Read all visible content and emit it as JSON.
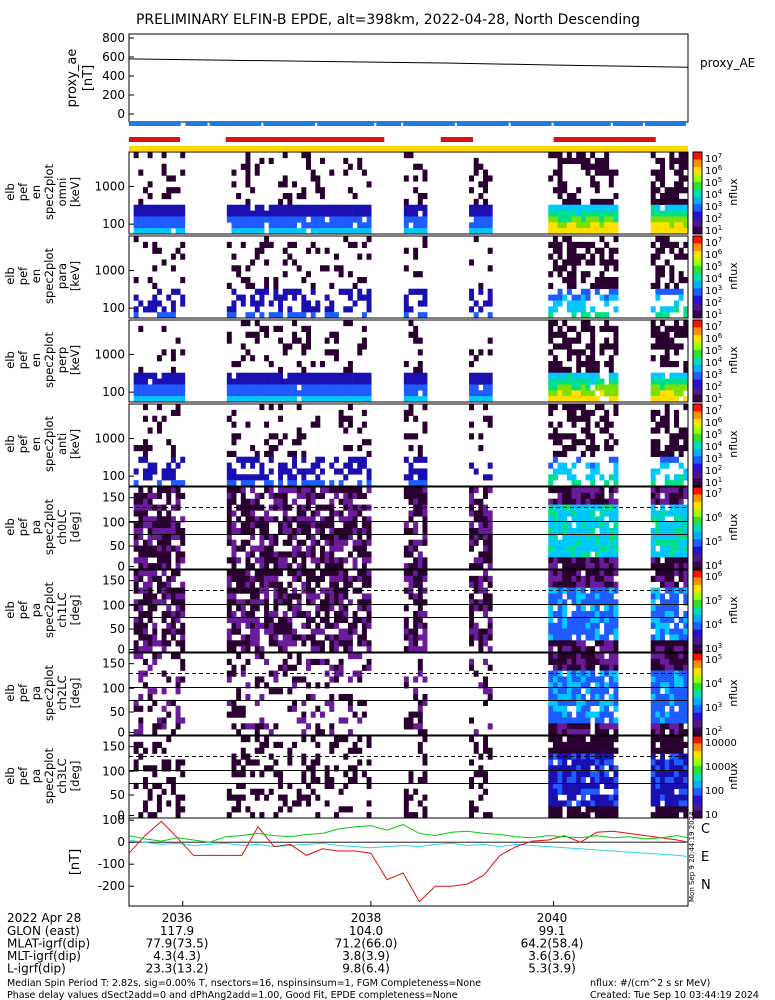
{
  "title": "PRELIMINARY ELFIN-B EPDE, alt=398km, 2022-04-28, North Descending",
  "colors": {
    "bar_blue": "#1e7ae6",
    "bar_red": "#e01010",
    "bar_yellow": "#ffd700",
    "line_C": "#2fd3e6",
    "line_E": "#e01010",
    "line_N": "#12c412"
  },
  "chart_data": [
    {
      "type": "line",
      "panel": "proxy_ae",
      "ylabel_lines": [
        "proxy_ae",
        "[nT]"
      ],
      "legend": "proxy_AE",
      "ylim": [
        0,
        800
      ],
      "yticks": [
        "800",
        "600",
        "400",
        "200",
        "0"
      ],
      "x_minutes": [
        0,
        2,
        4,
        6,
        8,
        10.4
      ],
      "values": [
        580,
        565,
        550,
        535,
        515,
        492
      ]
    },
    {
      "type": "bar",
      "panel": "status_bars",
      "rows": [
        {
          "name": "spin",
          "color": "blue",
          "segments": [
            [
              0,
              1.0
            ],
            [
              1.05,
              1.5
            ],
            [
              1.5,
              2.5
            ],
            [
              2.5,
              3.5
            ],
            [
              3.5,
              4.6
            ],
            [
              4.6,
              5.1
            ],
            [
              5.1,
              6.1
            ],
            [
              6.1,
              7.1
            ],
            [
              7.1,
              7.9
            ],
            [
              7.9,
              9.0
            ],
            [
              9.0,
              9.6
            ],
            [
              9.6,
              10.4
            ]
          ]
        },
        {
          "name": "science",
          "color": "red",
          "segments": [
            [
              0,
              0.95
            ],
            [
              1.8,
              4.75
            ],
            [
              5.8,
              6.4
            ],
            [
              7.9,
              9.8
            ]
          ]
        },
        {
          "name": "completeness",
          "color": "yellow",
          "segments": [
            [
              0,
              10.4
            ]
          ]
        }
      ]
    },
    {
      "type": "heatmap",
      "panel": "elb_pef_en_spec2plot_omni",
      "ylabel_lines": [
        "elb",
        "pef",
        "en",
        "spec2plot",
        "omni",
        "[keV]"
      ],
      "yticks": [
        "1000",
        "100"
      ],
      "colorbar": {
        "label": "nflux",
        "ticks": [
          "10^7",
          "10^6",
          "10^5",
          "10^4",
          "10^3",
          "10^2",
          "10^1"
        ]
      }
    },
    {
      "type": "heatmap",
      "panel": "elb_pef_en_spec2plot_para",
      "ylabel_lines": [
        "elb",
        "pef",
        "en",
        "spec2plot",
        "para",
        "[keV]"
      ],
      "yticks": [
        "1000",
        "100"
      ],
      "colorbar": {
        "label": "nflux",
        "ticks": [
          "10^7",
          "10^6",
          "10^5",
          "10^4",
          "10^3",
          "10^2",
          "10^1"
        ]
      }
    },
    {
      "type": "heatmap",
      "panel": "elb_pef_en_spec2plot_perp",
      "ylabel_lines": [
        "elb",
        "pef",
        "en",
        "spec2plot",
        "perp",
        "[keV]"
      ],
      "yticks": [
        "1000",
        "100"
      ],
      "colorbar": {
        "label": "nflux",
        "ticks": [
          "10^7",
          "10^6",
          "10^5",
          "10^4",
          "10^3",
          "10^2",
          "10^1"
        ]
      }
    },
    {
      "type": "heatmap",
      "panel": "elb_pef_en_spec2plot_anti",
      "ylabel_lines": [
        "elb",
        "pef",
        "en",
        "spec2plot",
        "anti",
        "[keV]"
      ],
      "yticks": [
        "1000",
        "100"
      ],
      "colorbar": {
        "label": "nflux",
        "ticks": [
          "10^7",
          "10^6",
          "10^5",
          "10^4",
          "10^3",
          "10^2",
          "10^1"
        ]
      }
    },
    {
      "type": "heatmap",
      "panel": "elb_pef_pa_spec2plot_ch0LC",
      "ylabel_lines": [
        "elb",
        "pef",
        "pa",
        "spec2plot",
        "ch0LC",
        "[deg]"
      ],
      "yticks": [
        "150",
        "100",
        "50",
        "0"
      ],
      "colorbar": {
        "label": "nflux",
        "ticks": [
          "10^7",
          "10^6",
          "10^5",
          "10^4"
        ]
      }
    },
    {
      "type": "heatmap",
      "panel": "elb_pef_pa_spec2plot_ch1LC",
      "ylabel_lines": [
        "elb",
        "pef",
        "pa",
        "spec2plot",
        "ch1LC",
        "[deg]"
      ],
      "yticks": [
        "150",
        "100",
        "50",
        "0"
      ],
      "colorbar": {
        "label": "nflux",
        "ticks": [
          "10^6",
          "10^5",
          "10^4",
          "10^3"
        ]
      }
    },
    {
      "type": "heatmap",
      "panel": "elb_pef_pa_spec2plot_ch2LC",
      "ylabel_lines": [
        "elb",
        "pef",
        "pa",
        "spec2plot",
        "ch2LC",
        "[deg]"
      ],
      "yticks": [
        "150",
        "100",
        "50",
        "0"
      ],
      "colorbar": {
        "label": "nflux",
        "ticks": [
          "10^5",
          "10^4",
          "10^3",
          "10^2"
        ]
      }
    },
    {
      "type": "heatmap",
      "panel": "elb_pef_pa_spec2plot_ch3LC",
      "ylabel_lines": [
        "elb",
        "pef",
        "pa",
        "spec2plot",
        "ch3LC",
        "[deg]"
      ],
      "yticks": [
        "150",
        "100",
        "50",
        "0"
      ],
      "colorbar": {
        "label": "nflux",
        "ticks": [
          "10000",
          "1000",
          "100",
          "10"
        ]
      }
    },
    {
      "type": "line",
      "panel": "fgm_dB",
      "ylabel_lines": [
        "[nT]"
      ],
      "ylim": [
        -290,
        110
      ],
      "yticks": [
        "100",
        "0",
        "-100",
        "-200"
      ],
      "x_minutes": [
        0,
        0.3,
        0.6,
        0.9,
        1.2,
        1.5,
        1.8,
        2.1,
        2.4,
        2.7,
        3.0,
        3.3,
        3.6,
        3.9,
        4.2,
        4.5,
        4.8,
        5.1,
        5.4,
        5.7,
        6.0,
        6.3,
        6.6,
        6.9,
        7.2,
        7.5,
        7.8,
        8.1,
        8.4,
        8.7,
        9.0,
        9.3,
        9.6,
        9.9,
        10.2,
        10.4
      ],
      "series": [
        {
          "name": "C",
          "color_key": "line_C",
          "values": [
            10,
            0,
            -10,
            -5,
            -15,
            -10,
            -5,
            -15,
            -10,
            -20,
            -15,
            -10,
            -5,
            -15,
            -20,
            -25,
            -20,
            -15,
            -20,
            -10,
            -5,
            -15,
            -10,
            -20,
            -10,
            -15,
            -20,
            -25,
            -30,
            -35,
            -40,
            -45,
            -50,
            -55,
            -60,
            -65
          ]
        },
        {
          "name": "E",
          "color_key": "line_E",
          "values": [
            -50,
            30,
            95,
            20,
            -60,
            -60,
            -60,
            -60,
            70,
            -20,
            -10,
            -60,
            -30,
            -40,
            -40,
            -50,
            -170,
            -140,
            -270,
            -200,
            -200,
            -190,
            -150,
            -60,
            -20,
            5,
            10,
            30,
            0,
            45,
            50,
            40,
            30,
            20,
            10,
            0
          ]
        },
        {
          "name": "N",
          "color_key": "line_N",
          "values": [
            30,
            15,
            5,
            20,
            10,
            0,
            25,
            30,
            40,
            30,
            25,
            35,
            40,
            60,
            70,
            75,
            55,
            80,
            40,
            30,
            45,
            50,
            40,
            35,
            25,
            20,
            30,
            25,
            20,
            30,
            20,
            25,
            15,
            20,
            30,
            20
          ]
        }
      ],
      "legend": [
        "C",
        "E",
        "N"
      ]
    }
  ],
  "x_axis": {
    "tick_labels": [
      "2036",
      "2038",
      "2040"
    ],
    "start_label": "2022 Apr 28"
  },
  "ephemeris": {
    "rows": [
      {
        "label": "GLON (east)",
        "v1": "117.9",
        "v2": "104.0",
        "v3": "99.1"
      },
      {
        "label": "MLAT-igrf(dip)",
        "v1": "77.9(73.5)",
        "v2": "71.2(66.0)",
        "v3": "64.2(58.4)"
      },
      {
        "label": "MLT-igrf(dip)",
        "v1": "4.3(4.3)",
        "v2": "3.8(3.9)",
        "v3": "3.6(3.6)"
      },
      {
        "label": "L-igrf(dip)",
        "v1": "23.3(13.2)",
        "v2": "9.8(6.4)",
        "v3": "5.3(3.9)"
      }
    ]
  },
  "footer": {
    "line1": "Median Spin Period T: 2.82s, sig=0.00% T, nsectors=16, nspinsinsum=1, FGM Completeness=None",
    "line2": "Phase delay values dSect2add=0 and dPhAng2add=1.00, Good Fit, EPDE completeness=None",
    "units": "nflux: #/(cm^2 s sr MeV)",
    "created": "Created: Tue Sep 10 03:44:19 2024",
    "side_stamp": "Mon Sep 9 20:44:19 2024"
  }
}
